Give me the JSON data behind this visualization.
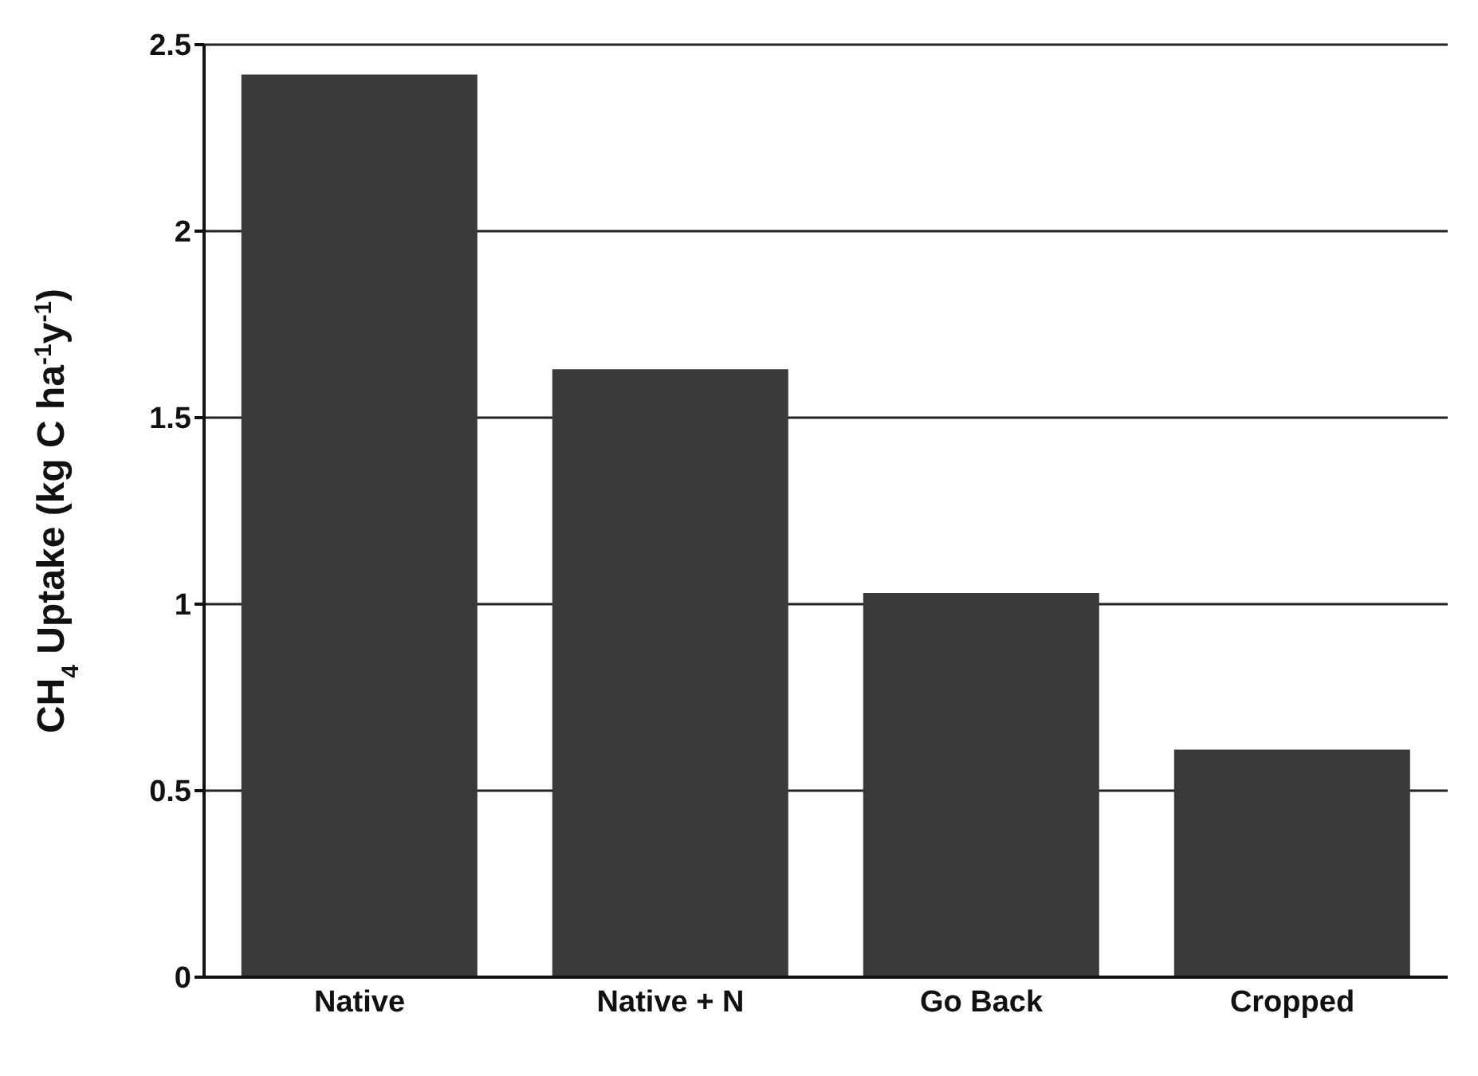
{
  "chart_data": {
    "type": "bar",
    "ylabel": "CH$_{4}$ Uptake (kg C ha$^{-1}$y$^{-1}$)",
    "categories": [
      "Native",
      "Native + N",
      "Go Back",
      "Cropped"
    ],
    "values": [
      2.42,
      1.63,
      1.03,
      0.61
    ],
    "color": "#3a3a3a",
    "ylim": [
      0,
      2.5
    ],
    "yticks": [
      0,
      0.5,
      1,
      1.5,
      2,
      2.5
    ],
    "grid": "y"
  }
}
